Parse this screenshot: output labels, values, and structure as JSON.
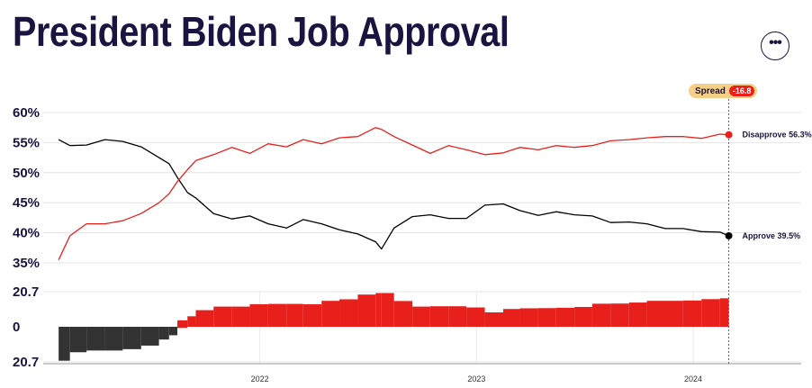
{
  "title": "President Biden Job Approval",
  "menu_icon": "more-horizontal-icon",
  "spread": {
    "label": "Spread",
    "value": "-16.8"
  },
  "colors": {
    "approve": "#000000",
    "disapprove": "#e8201c",
    "spread_negative": "#333333",
    "spread_positive": "#e8201c",
    "title": "#1b1440"
  },
  "chart_data": [
    {
      "type": "line",
      "title": "",
      "xlabel": "",
      "ylabel": "",
      "x_ticks": [
        "2022",
        "2023",
        "2024"
      ],
      "y_tick_labels": [
        "60%",
        "55%",
        "50%",
        "45%",
        "40%",
        "35%"
      ],
      "ylim": [
        35,
        60
      ],
      "x": [
        "2021-01-27",
        "2021-02-15",
        "2021-03-15",
        "2021-04-15",
        "2021-05-15",
        "2021-06-15",
        "2021-07-15",
        "2021-08-01",
        "2021-08-15",
        "2021-09-01",
        "2021-09-15",
        "2021-10-15",
        "2021-11-15",
        "2021-12-15",
        "2022-01-15",
        "2022-02-15",
        "2022-03-15",
        "2022-04-15",
        "2022-05-15",
        "2022-06-15",
        "2022-07-15",
        "2022-07-25",
        "2022-08-15",
        "2022-09-15",
        "2022-10-15",
        "2022-11-15",
        "2022-12-15",
        "2023-01-15",
        "2023-02-15",
        "2023-03-15",
        "2023-04-15",
        "2023-05-15",
        "2023-06-15",
        "2023-07-15",
        "2023-08-15",
        "2023-09-15",
        "2023-10-15",
        "2023-11-15",
        "2023-12-15",
        "2024-01-15",
        "2024-02-15",
        "2024-03-01"
      ],
      "series": [
        {
          "name": "Approve",
          "values": [
            55.5,
            54.5,
            54.6,
            55.5,
            55.2,
            54.3,
            52.5,
            51.5,
            49.2,
            46.7,
            45.8,
            43.2,
            42.3,
            42.8,
            41.5,
            40.8,
            42.2,
            41.5,
            40.5,
            39.8,
            38.5,
            37.3,
            40.8,
            42.7,
            43.0,
            42.4,
            42.4,
            44.6,
            44.8,
            43.7,
            42.9,
            43.5,
            43.0,
            42.8,
            41.7,
            41.8,
            41.5,
            40.7,
            40.7,
            40.2,
            40.1,
            39.5
          ],
          "end_label": "Approve 39.5%"
        },
        {
          "name": "Disapprove",
          "values": [
            35.5,
            39.5,
            41.5,
            41.5,
            42.0,
            43.2,
            45.0,
            46.5,
            48.5,
            50.5,
            52.0,
            53.0,
            54.2,
            53.2,
            54.8,
            54.3,
            55.5,
            54.8,
            55.8,
            56.0,
            57.5,
            57.2,
            56.0,
            54.6,
            53.2,
            54.5,
            53.8,
            53.0,
            53.3,
            54.2,
            53.8,
            54.5,
            54.2,
            54.5,
            55.3,
            55.5,
            55.8,
            56.0,
            56.0,
            55.7,
            56.4,
            56.3
          ],
          "end_label": "Disapprove 56.3%"
        }
      ],
      "end_markers": true
    },
    {
      "type": "bar",
      "title": "Spread",
      "y_tick_labels": [
        "20.7",
        "0",
        "20.7"
      ],
      "ylim": [
        -20.7,
        20.7
      ],
      "x": [
        "2021-01-27",
        "2021-02-15",
        "2021-03-15",
        "2021-04-15",
        "2021-05-15",
        "2021-06-15",
        "2021-07-15",
        "2021-08-01",
        "2021-08-15",
        "2021-09-01",
        "2021-09-15",
        "2021-10-15",
        "2021-11-15",
        "2021-12-15",
        "2022-01-15",
        "2022-02-15",
        "2022-03-15",
        "2022-04-15",
        "2022-05-15",
        "2022-06-15",
        "2022-07-15",
        "2022-07-25",
        "2022-08-15",
        "2022-09-15",
        "2022-10-15",
        "2022-11-15",
        "2022-12-15",
        "2023-01-15",
        "2023-02-15",
        "2023-03-15",
        "2023-04-15",
        "2023-05-15",
        "2023-06-15",
        "2023-07-15",
        "2023-08-15",
        "2023-09-15",
        "2023-10-15",
        "2023-11-15",
        "2023-12-15",
        "2024-01-15",
        "2024-02-15",
        "2024-03-01"
      ],
      "values": [
        -20.0,
        -15.0,
        -13.1,
        -14.0,
        -13.2,
        -11.1,
        -7.5,
        -5.0,
        -0.7,
        3.8,
        6.2,
        9.8,
        11.9,
        10.4,
        13.3,
        13.5,
        13.3,
        13.3,
        15.3,
        16.2,
        19.0,
        19.9,
        15.2,
        11.9,
        10.2,
        12.1,
        11.4,
        8.4,
        8.5,
        10.5,
        10.9,
        11.0,
        11.2,
        11.7,
        13.6,
        13.7,
        14.3,
        15.3,
        15.3,
        15.5,
        16.3,
        16.8
      ]
    }
  ]
}
